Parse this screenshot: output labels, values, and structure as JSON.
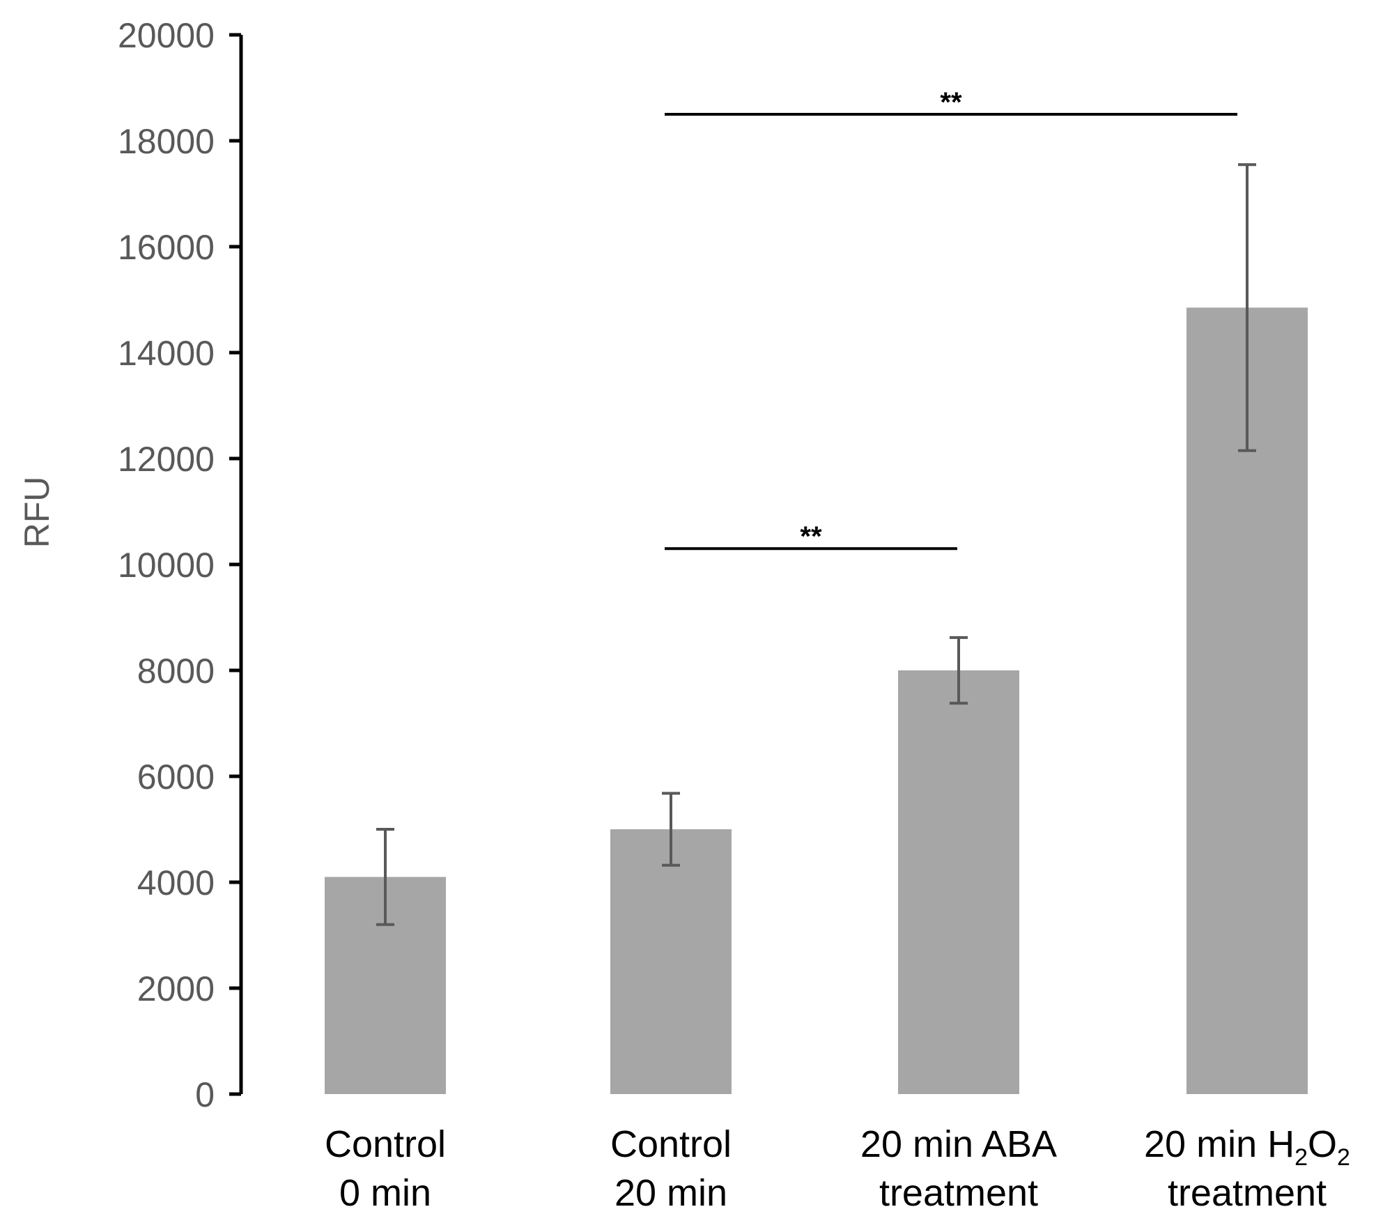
{
  "chart_data": {
    "type": "bar",
    "title": "",
    "xlabel": "",
    "ylabel": "RFU",
    "ylim": [
      0,
      20000
    ],
    "yticks": [
      0,
      2000,
      4000,
      6000,
      8000,
      10000,
      12000,
      14000,
      16000,
      18000,
      20000
    ],
    "categories": [
      {
        "line1": "Control",
        "line2": "0 min"
      },
      {
        "line1": "Control",
        "line2": "20 min"
      },
      {
        "line1": "20 min ABA",
        "line2": "treatment"
      },
      {
        "line1_prefix": "20 min H",
        "sub1": "2",
        "mid": "O",
        "sub2": "2",
        "line2": "treatment"
      }
    ],
    "values": [
      4100,
      5000,
      8000,
      14850
    ],
    "errors": [
      900,
      680,
      620,
      2700
    ],
    "significance": [
      {
        "from": 1,
        "to": 2,
        "label": "**",
        "y": 10300
      },
      {
        "from": 1,
        "to": 3,
        "label": "**",
        "y": 18500
      }
    ],
    "grid": false,
    "colors": {
      "bar": "#a6a6a6",
      "error": "#595959",
      "axis": "#000000",
      "sig": "#000000"
    }
  }
}
